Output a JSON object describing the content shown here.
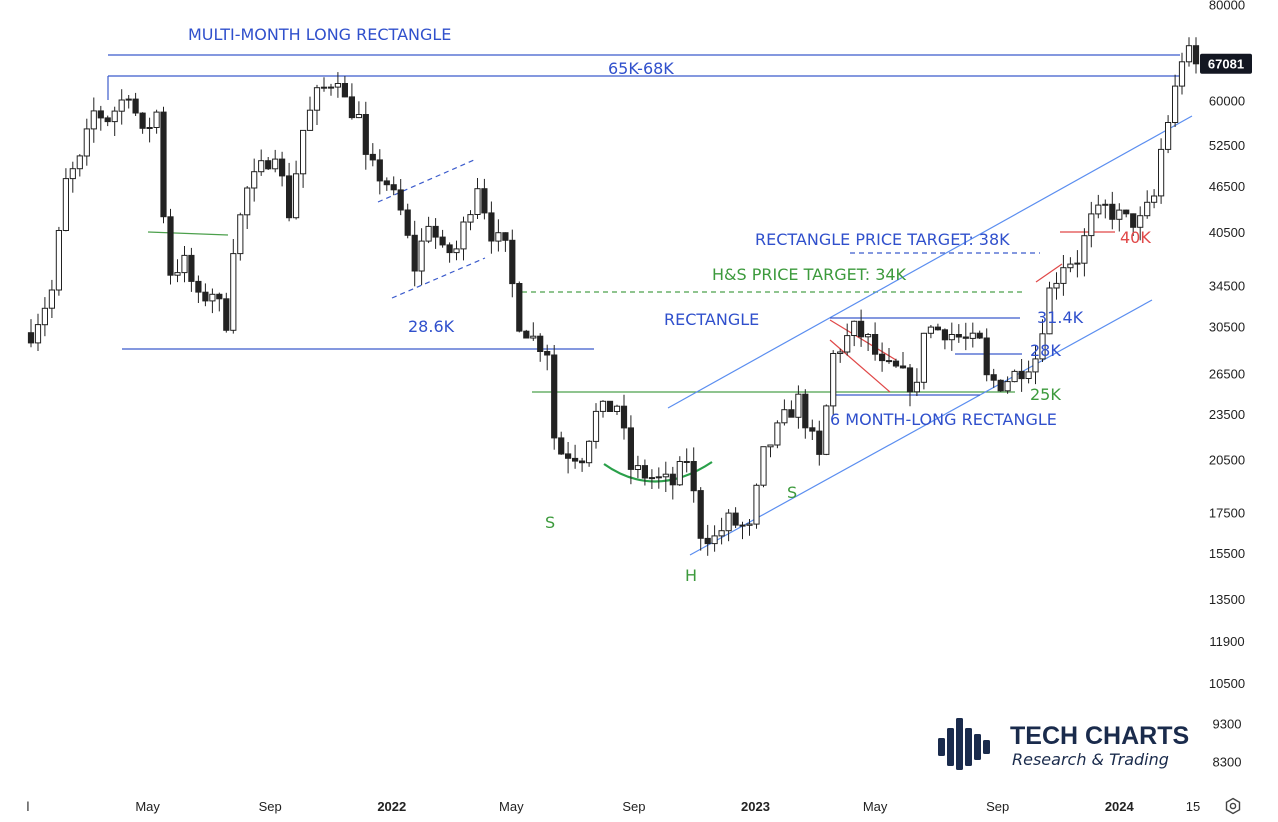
{
  "chart_data": {
    "type": "candlestick",
    "title": "",
    "xlabel": "",
    "ylabel": "",
    "y_scale": "log",
    "ylim": [
      7800,
      80000
    ],
    "y_ticks": [
      80000,
      60000,
      52500,
      46500,
      40500,
      34500,
      30500,
      26500,
      23500,
      20500,
      17500,
      15500,
      13500,
      11900,
      10500,
      9300,
      8300
    ],
    "x_ticks": [
      {
        "label": "l",
        "date": "2021-01-01",
        "bold": false
      },
      {
        "label": "May",
        "date": "2021-05-01",
        "bold": false
      },
      {
        "label": "Sep",
        "date": "2021-09-01",
        "bold": false
      },
      {
        "label": "2022",
        "date": "2022-01-01",
        "bold": true
      },
      {
        "label": "May",
        "date": "2022-05-01",
        "bold": false
      },
      {
        "label": "Sep",
        "date": "2022-09-01",
        "bold": false
      },
      {
        "label": "2023",
        "date": "2023-01-01",
        "bold": true
      },
      {
        "label": "May",
        "date": "2023-05-01",
        "bold": false
      },
      {
        "label": "Sep",
        "date": "2023-09-01",
        "bold": false
      },
      {
        "label": "2024",
        "date": "2024-01-01",
        "bold": true
      },
      {
        "label": "15",
        "date": "2024-03-15",
        "bold": false
      }
    ],
    "last_price": "67081",
    "last_price_value": 67081,
    "grid": false,
    "waypoints": [
      [
        "2021-01-04",
        30000
      ],
      [
        "2021-01-25",
        34000
      ],
      [
        "2021-02-08",
        47000
      ],
      [
        "2021-02-22",
        50000
      ],
      [
        "2021-03-08",
        58000
      ],
      [
        "2021-03-22",
        57000
      ],
      [
        "2021-04-05",
        60000
      ],
      [
        "2021-04-12",
        62000
      ],
      [
        "2021-04-26",
        54000
      ],
      [
        "2021-05-10",
        58000
      ],
      [
        "2021-05-17",
        43000
      ],
      [
        "2021-05-24",
        36000
      ],
      [
        "2021-06-07",
        37000
      ],
      [
        "2021-06-21",
        33000
      ],
      [
        "2021-07-05",
        34000
      ],
      [
        "2021-07-19",
        31000
      ],
      [
        "2021-07-26",
        39000
      ],
      [
        "2021-08-09",
        46000
      ],
      [
        "2021-08-23",
        49000
      ],
      [
        "2021-09-06",
        52000
      ],
      [
        "2021-09-20",
        43000
      ],
      [
        "2021-10-04",
        55000
      ],
      [
        "2021-10-18",
        61000
      ],
      [
        "2021-11-08",
        65000
      ],
      [
        "2021-11-15",
        60000
      ],
      [
        "2021-11-29",
        57000
      ],
      [
        "2021-12-06",
        50000
      ],
      [
        "2021-12-27",
        47000
      ],
      [
        "2022-01-10",
        43000
      ],
      [
        "2022-01-24",
        36500
      ],
      [
        "2022-02-07",
        42000
      ],
      [
        "2022-02-21",
        38000
      ],
      [
        "2022-03-07",
        38500
      ],
      [
        "2022-03-28",
        47000
      ],
      [
        "2022-04-11",
        40500
      ],
      [
        "2022-04-25",
        38500
      ],
      [
        "2022-05-09",
        31000
      ],
      [
        "2022-05-23",
        29500
      ],
      [
        "2022-06-06",
        28500
      ],
      [
        "2022-06-13",
        22000
      ],
      [
        "2022-06-20",
        21000
      ],
      [
        "2022-07-11",
        20800
      ],
      [
        "2022-07-25",
        23500
      ],
      [
        "2022-08-15",
        24200
      ],
      [
        "2022-08-29",
        20000
      ],
      [
        "2022-09-12",
        19600
      ],
      [
        "2022-09-26",
        19300
      ],
      [
        "2022-10-10",
        19100
      ],
      [
        "2022-10-24",
        20600
      ],
      [
        "2022-11-07",
        16500
      ],
      [
        "2022-11-21",
        16200
      ],
      [
        "2022-12-05",
        17100
      ],
      [
        "2022-12-26",
        16600
      ],
      [
        "2023-01-09",
        20800
      ],
      [
        "2023-01-30",
        23200
      ],
      [
        "2023-02-13",
        24500
      ],
      [
        "2023-03-06",
        20500
      ],
      [
        "2023-03-20",
        28000
      ],
      [
        "2023-04-10",
        30300
      ],
      [
        "2023-04-24",
        29300
      ],
      [
        "2023-05-08",
        27000
      ],
      [
        "2023-05-22",
        26800
      ],
      [
        "2023-06-12",
        25300
      ],
      [
        "2023-06-19",
        30500
      ],
      [
        "2023-07-10",
        30200
      ],
      [
        "2023-07-31",
        29300
      ],
      [
        "2023-08-14",
        29000
      ],
      [
        "2023-08-21",
        26100
      ],
      [
        "2023-09-04",
        25800
      ],
      [
        "2023-09-18",
        26500
      ],
      [
        "2023-10-09",
        27900
      ],
      [
        "2023-10-23",
        34000
      ],
      [
        "2023-11-06",
        37000
      ],
      [
        "2023-11-20",
        37500
      ],
      [
        "2023-12-04",
        42000
      ],
      [
        "2023-12-18",
        43500
      ],
      [
        "2024-01-08",
        42000
      ],
      [
        "2024-01-22",
        41800
      ],
      [
        "2024-02-05",
        45000
      ],
      [
        "2024-02-12",
        51800
      ],
      [
        "2024-02-26",
        62000
      ],
      [
        "2024-03-04",
        68500
      ],
      [
        "2024-03-11",
        69000
      ],
      [
        "2024-03-18",
        67081
      ]
    ],
    "annotations": {
      "multi_month": "MULTI-MONTH LONG RECTANGLE",
      "k65_68": "65K-68K",
      "k28_6": "28.6K",
      "rect_target": "RECTANGLE PRICE TARGET: 38K",
      "hs_target": "H&S PRICE TARGET: 34K",
      "rectangle": "RECTANGLE",
      "k31_4": "31.4K",
      "k28": "28K",
      "k25": "25K",
      "six_month": "6 MONTH-LONG RECTANGLE",
      "k40": "40K",
      "s_left": "S",
      "head": "H",
      "s_right": "S"
    },
    "colors": {
      "candle": "#222222",
      "blue_line": "#3b5bcc",
      "blue_text": "#3050cc",
      "channel_line": "#5b8ef0",
      "green": "#4ca04c",
      "green_text": "#3c9a3c",
      "red": "#e04848",
      "logo": "#1a2b4c",
      "price_tag_bg": "#131722"
    }
  },
  "logo": {
    "title": "TECH CHARTS",
    "subtitle": "Research & Trading"
  },
  "icons": {
    "settings": "gear-icon"
  }
}
